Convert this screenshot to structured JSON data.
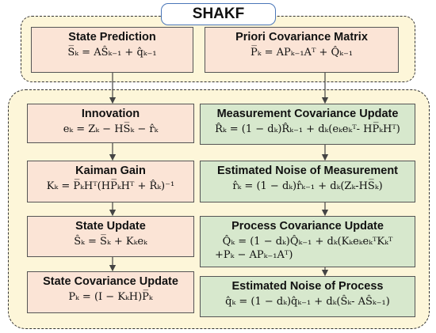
{
  "title": "SHAKF",
  "boxes": {
    "state_prediction": {
      "heading": "State Prediction",
      "equation": "S̅ₖ = AŜₖ₋₁ + q̂ₖ₋₁"
    },
    "priori_covariance": {
      "heading": "Priori Covariance Matrix",
      "equation": "P̅ₖ = APₖ₋₁Aᵀ + Q̂ₖ₋₁"
    },
    "innovation": {
      "heading": "Innovation",
      "equation": "eₖ = Zₖ − HS̅ₖ − r̂ₖ"
    },
    "kalman_gain": {
      "heading": "Kaiman Gain",
      "equation": "Kₖ = P̅ₖHᵀ(HP̅ₖHᵀ + R̂ₖ)⁻¹"
    },
    "state_update": {
      "heading": "State Update",
      "equation": "Ŝₖ = S̅ₖ + Kₖeₖ"
    },
    "state_covariance_update": {
      "heading": "State Covariance Update",
      "equation": "Pₖ = (I − KₖH)P̅ₖ"
    },
    "measurement_covariance_update": {
      "heading": "Measurement Covariance Update",
      "equation": "R̂ₖ = (1 − dₖ)R̂ₖ₋₁ + dₖ(eₖeₖᵀ- HP̅ₖHᵀ)"
    },
    "estimated_noise_measurement": {
      "heading": "Estimated Noise of Measurement",
      "equation": "r̂ₖ = (1 − dₖ)r̂ₖ₋₁ + dₖ(Zₖ-HS̅ₖ)"
    },
    "process_covariance_update": {
      "heading": "Process Covariance Update",
      "equation": "Q̂ₖ = (1 − dₖ)Q̂ₖ₋₁ + dₖ(KₖeₖeₖᵀKₖᵀ",
      "equation_line2": "+Pₖ − APₖ₋₁Aᵀ)"
    },
    "estimated_noise_process": {
      "heading": "Estimated Noise of Process",
      "equation": "q̂ₖ = (1 − dₖ)q̂ₖ₋₁ + dₖ(Ŝₖ- AŜₖ₋₁)"
    }
  }
}
